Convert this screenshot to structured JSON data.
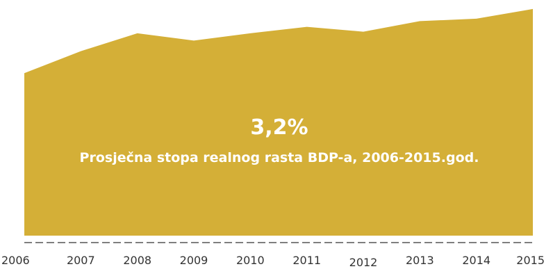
{
  "chart_data": {
    "type": "area",
    "x": [
      "2006",
      "2007",
      "2008",
      "2009",
      "2010",
      "2011",
      "2012",
      "2013",
      "2014",
      "2015"
    ],
    "series": [
      {
        "values": [
          100,
          113.5,
          124.5,
          120,
          124.5,
          128.5,
          125.5,
          132,
          133.5,
          139.5
        ]
      }
    ],
    "ylim": [
      0,
      145
    ],
    "grid": false,
    "legend": "none",
    "annotation_value": "3,2%",
    "annotation_text": "Prosječna stopa realnog rasta BDP-a, 2006-2015.god.",
    "colors": {
      "area": "#d4af37",
      "baseline": "#555555",
      "annotation": "#ffffff",
      "tick": "#333333"
    }
  }
}
